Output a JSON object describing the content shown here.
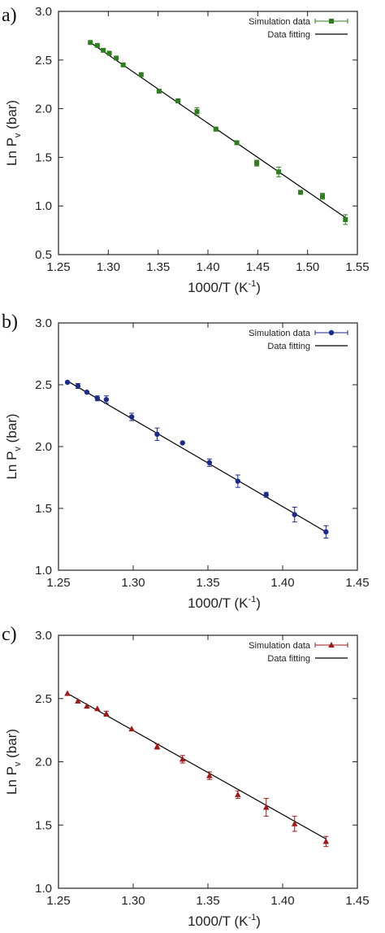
{
  "chart_data": [
    {
      "type": "scatter",
      "panel_label": "a)",
      "marker": "square",
      "color": "#2e7d1e",
      "xlabel": "1000/T (K",
      "xlabel_sup": "-1",
      "xlabel_end": ")",
      "ylabel": "Ln P",
      "ylabel_sub": "v",
      "ylabel_end": " (bar)",
      "xlim": [
        1.25,
        1.55
      ],
      "ylim": [
        0.5,
        3.0
      ],
      "xticks": [
        "1.25",
        "1.30",
        "1.35",
        "1.40",
        "1.45",
        "1.50",
        "1.55"
      ],
      "yticks": [
        "0.5",
        "1.0",
        "1.5",
        "2.0",
        "2.5",
        "3.0"
      ],
      "legend_position": "top-right",
      "series": [
        {
          "name": "Simulation data",
          "points": [
            {
              "x": 1.282,
              "y": 2.68,
              "err": 0.0
            },
            {
              "x": 1.289,
              "y": 2.65,
              "err": 0.0
            },
            {
              "x": 1.295,
              "y": 2.6,
              "err": 0.0
            },
            {
              "x": 1.301,
              "y": 2.57,
              "err": 0.0
            },
            {
              "x": 1.308,
              "y": 2.52,
              "err": 0.0
            },
            {
              "x": 1.315,
              "y": 2.45,
              "err": 0.0
            },
            {
              "x": 1.333,
              "y": 2.35,
              "err": 0.0
            },
            {
              "x": 1.351,
              "y": 2.18,
              "err": 0.0
            },
            {
              "x": 1.37,
              "y": 2.08,
              "err": 0.02
            },
            {
              "x": 1.389,
              "y": 1.97,
              "err": 0.04
            },
            {
              "x": 1.408,
              "y": 1.79,
              "err": 0.02
            },
            {
              "x": 1.429,
              "y": 1.65,
              "err": 0.02
            },
            {
              "x": 1.449,
              "y": 1.44,
              "err": 0.03
            },
            {
              "x": 1.471,
              "y": 1.35,
              "err": 0.05
            },
            {
              "x": 1.493,
              "y": 1.14,
              "err": 0.02
            },
            {
              "x": 1.515,
              "y": 1.1,
              "err": 0.03
            },
            {
              "x": 1.538,
              "y": 0.86,
              "err": 0.05
            }
          ]
        },
        {
          "name": "Data fitting",
          "line": {
            "x": [
              1.282,
              1.538
            ],
            "y": [
              2.68,
              0.88
            ]
          }
        }
      ]
    },
    {
      "type": "scatter",
      "panel_label": "b)",
      "marker": "circle",
      "color": "#1c2a8c",
      "xlabel": "1000/T (K",
      "xlabel_sup": "-1",
      "xlabel_end": ")",
      "ylabel": "Ln P",
      "ylabel_sub": "v",
      "ylabel_end": " (bar)",
      "xlim": [
        1.25,
        1.45
      ],
      "ylim": [
        1.0,
        3.0
      ],
      "xticks": [
        "1.25",
        "1.30",
        "1.35",
        "1.40",
        "1.45"
      ],
      "yticks": [
        "1.0",
        "1.5",
        "2.0",
        "2.5",
        "3.0"
      ],
      "legend_position": "top-right",
      "series": [
        {
          "name": "Simulation data",
          "points": [
            {
              "x": 1.256,
              "y": 2.52,
              "err": 0.0
            },
            {
              "x": 1.263,
              "y": 2.49,
              "err": 0.02
            },
            {
              "x": 1.269,
              "y": 2.44,
              "err": 0.0
            },
            {
              "x": 1.276,
              "y": 2.39,
              "err": 0.02
            },
            {
              "x": 1.282,
              "y": 2.38,
              "err": 0.03
            },
            {
              "x": 1.299,
              "y": 2.24,
              "err": 0.03
            },
            {
              "x": 1.316,
              "y": 2.1,
              "err": 0.05
            },
            {
              "x": 1.333,
              "y": 2.03,
              "err": 0.0
            },
            {
              "x": 1.351,
              "y": 1.87,
              "err": 0.03
            },
            {
              "x": 1.37,
              "y": 1.72,
              "err": 0.05
            },
            {
              "x": 1.389,
              "y": 1.61,
              "err": 0.02
            },
            {
              "x": 1.408,
              "y": 1.45,
              "err": 0.06
            },
            {
              "x": 1.429,
              "y": 1.31,
              "err": 0.05
            }
          ]
        },
        {
          "name": "Data fitting",
          "line": {
            "x": [
              1.256,
              1.429
            ],
            "y": [
              2.53,
              1.31
            ]
          }
        }
      ]
    },
    {
      "type": "scatter",
      "panel_label": "c)",
      "marker": "triangle",
      "color": "#a01818",
      "xlabel": "1000/T (K",
      "xlabel_sup": "-1",
      "xlabel_end": ")",
      "ylabel": "Ln P",
      "ylabel_sub": "v",
      "ylabel_end": " (bar)",
      "xlim": [
        1.25,
        1.45
      ],
      "ylim": [
        1.0,
        3.0
      ],
      "xticks": [
        "1.25",
        "1.30",
        "1.35",
        "1.40",
        "1.45"
      ],
      "yticks": [
        "1.0",
        "1.5",
        "2.0",
        "2.5",
        "3.0"
      ],
      "legend_position": "top-right",
      "series": [
        {
          "name": "Simulation data",
          "points": [
            {
              "x": 1.256,
              "y": 2.54,
              "err": 0.0
            },
            {
              "x": 1.263,
              "y": 2.48,
              "err": 0.0
            },
            {
              "x": 1.269,
              "y": 2.44,
              "err": 0.0
            },
            {
              "x": 1.276,
              "y": 2.42,
              "err": 0.0
            },
            {
              "x": 1.282,
              "y": 2.38,
              "err": 0.02
            },
            {
              "x": 1.299,
              "y": 2.26,
              "err": 0.0
            },
            {
              "x": 1.316,
              "y": 2.12,
              "err": 0.02
            },
            {
              "x": 1.333,
              "y": 2.02,
              "err": 0.03
            },
            {
              "x": 1.351,
              "y": 1.89,
              "err": 0.03
            },
            {
              "x": 1.37,
              "y": 1.74,
              "err": 0.03
            },
            {
              "x": 1.389,
              "y": 1.64,
              "err": 0.07
            },
            {
              "x": 1.408,
              "y": 1.51,
              "err": 0.06
            },
            {
              "x": 1.429,
              "y": 1.37,
              "err": 0.04
            }
          ]
        },
        {
          "name": "Data fitting",
          "line": {
            "x": [
              1.256,
              1.429
            ],
            "y": [
              2.54,
              1.39
            ]
          }
        }
      ]
    }
  ]
}
